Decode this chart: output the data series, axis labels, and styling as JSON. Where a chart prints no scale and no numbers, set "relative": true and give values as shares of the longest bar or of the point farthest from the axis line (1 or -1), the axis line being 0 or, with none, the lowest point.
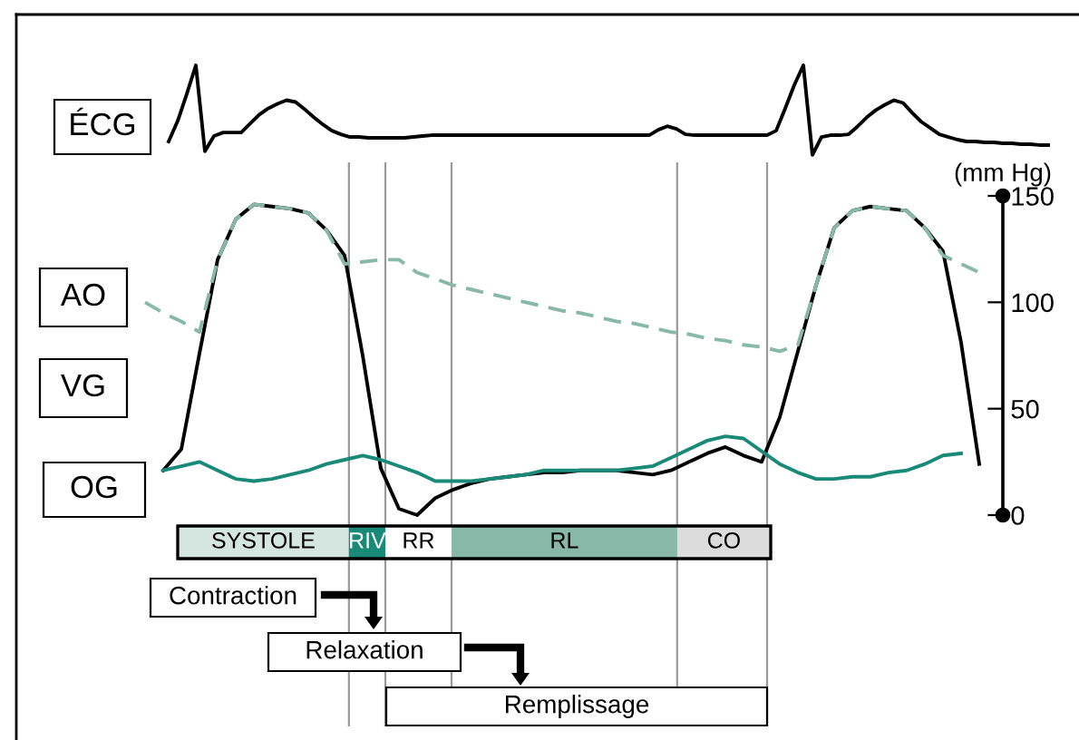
{
  "chart_data": [
    {
      "type": "line",
      "relative": true,
      "tick_labels": false,
      "categories": [
        null,
        null,
        null,
        null,
        null,
        null,
        null,
        null,
        null,
        null,
        null,
        null,
        null,
        null,
        null,
        null,
        null,
        null,
        null,
        null,
        null,
        null,
        null,
        null,
        null,
        null,
        null,
        null,
        null,
        null,
        null,
        null,
        null,
        null,
        null,
        null,
        null,
        null,
        null,
        null,
        null,
        null,
        null,
        null,
        null,
        null,
        null,
        null,
        null,
        null,
        null,
        null,
        null,
        null,
        null,
        null,
        null,
        null,
        null,
        null,
        null,
        null,
        null,
        null,
        null,
        null,
        null,
        null,
        null,
        null,
        null,
        null,
        null,
        null,
        null,
        null,
        null,
        null,
        null,
        null,
        null,
        null,
        null,
        null,
        null,
        null,
        null,
        null,
        null,
        null,
        null,
        null,
        null,
        null,
        null,
        null,
        null,
        null
      ],
      "series": [
        {
          "name": "ÉCG",
          "color": "#000000",
          "line_style": "solid",
          "values": [
            0.15,
            0.38,
            0.68,
            1,
            0.04,
            0.21,
            0.25,
            0.25,
            0.25,
            0.35,
            0.45,
            0.52,
            0.57,
            0.61,
            0.59,
            0.51,
            0.42,
            0.34,
            0.27,
            0.23,
            0.2,
            0.2,
            0.19,
            0.19,
            0.19,
            0.19,
            0.19,
            0.2,
            0.21,
            0.22,
            0.22,
            0.22,
            0.22,
            0.22,
            0.22,
            0.22,
            0.22,
            0.22,
            0.22,
            0.22,
            0.22,
            0.22,
            0.22,
            0.22,
            0.22,
            0.22,
            0.22,
            0.22,
            0.22,
            0.22,
            0.22,
            0.22,
            0.22,
            0.22,
            0.28,
            0.32,
            0.29,
            0.23,
            0.22,
            0.22,
            0.22,
            0.22,
            0.22,
            0.22,
            0.22,
            0.22,
            0.22,
            0.27,
            0.52,
            0.78,
            1,
            0,
            0.2,
            0.22,
            0.22,
            0.23,
            0.32,
            0.42,
            0.5,
            0.56,
            0.61,
            0.58,
            0.47,
            0.37,
            0.3,
            0.23,
            0.2,
            0.17,
            0.15,
            0.15,
            0.14,
            0.14,
            0.13,
            0.13,
            0.12,
            0.12,
            0.11,
            0.11
          ]
        }
      ]
    },
    {
      "type": "line",
      "ylabel": "(mm Hg)",
      "ylim": [
        0,
        150
      ],
      "yticks": [
        0,
        50,
        100,
        150
      ],
      "tick_labels": "y",
      "categories": [
        null,
        null,
        null,
        null,
        null,
        null,
        null,
        null,
        null,
        null,
        null,
        null,
        null,
        null,
        null,
        null,
        null,
        null,
        null,
        null,
        null,
        null,
        null,
        null,
        null,
        null,
        null,
        null,
        null,
        null,
        null,
        null,
        null,
        null,
        null,
        null,
        null,
        null,
        null,
        null,
        null,
        null,
        null,
        null,
        null,
        null,
        null
      ],
      "series": [
        {
          "name": "AO",
          "color": "#88b8a8",
          "line_style": "dashed",
          "values": [
            100,
            95,
            91,
            86,
            120,
            139,
            146,
            145,
            144,
            142,
            134,
            118,
            119,
            120,
            120,
            114,
            111,
            108,
            106,
            104,
            102,
            100,
            98,
            96,
            95,
            93,
            91,
            90,
            88,
            86,
            85,
            83,
            82,
            80,
            79,
            77,
            80,
            108,
            135,
            143,
            145,
            144,
            143,
            135,
            122,
            118,
            114
          ]
        },
        {
          "name": "VG",
          "color": "#000000",
          "line_style": "solid",
          "values": [
            null,
            21,
            31,
            76,
            120,
            139,
            146,
            145,
            144,
            142,
            134,
            122,
            75,
            22,
            3,
            0,
            8,
            12,
            15,
            17,
            18,
            19,
            20,
            20,
            21,
            21,
            21,
            20,
            19,
            21,
            25,
            29,
            32,
            28,
            25,
            46,
            77,
            108,
            135,
            143,
            145,
            144,
            143,
            135,
            124,
            81,
            24
          ]
        },
        {
          "name": "OG",
          "color": "#1a8a78",
          "line_style": "solid",
          "values": [
            null,
            21,
            23,
            25,
            21,
            17,
            16,
            17,
            19,
            21,
            24,
            26,
            28,
            26,
            23,
            20,
            16,
            16,
            16,
            17,
            18,
            19,
            21,
            21,
            21,
            21,
            21,
            22,
            23,
            27,
            31,
            35,
            37,
            36,
            30,
            24,
            20,
            17,
            17,
            18,
            18,
            20,
            21,
            24,
            28,
            29,
            null
          ]
        }
      ],
      "annotations": [
        "SYSTOLE",
        "RIV",
        "RR",
        "RL",
        "CO",
        "Contraction",
        "Relaxation",
        "Remplissage"
      ]
    }
  ]
}
